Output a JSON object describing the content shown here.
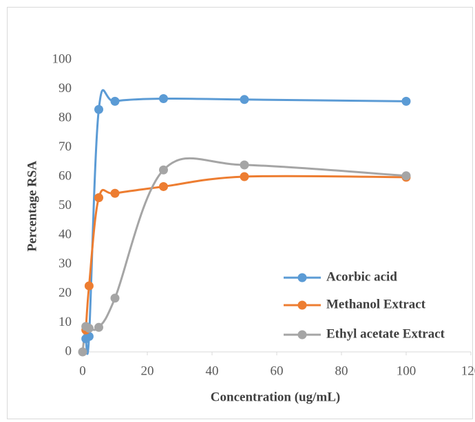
{
  "chart_data": {
    "type": "line",
    "xlabel": "Concentration (ug/mL)",
    "ylabel": "Percentage RSA",
    "x": [
      0,
      1,
      2,
      5,
      10,
      25,
      50,
      100
    ],
    "series": [
      {
        "name": "Acorbic acid",
        "color": "#5b9bd5",
        "values": [
          null,
          4.5,
          5.3,
          83,
          85.8,
          86.7,
          86.4,
          85.8
        ]
      },
      {
        "name": "Methanol Extract",
        "color": "#ed7d31",
        "values": [
          null,
          7.5,
          22.6,
          52.8,
          54.3,
          56.6,
          60.0,
          59.8
        ]
      },
      {
        "name": "Ethyl acetate Extract",
        "color": "#a5a5a5",
        "values": [
          0,
          8.7,
          8.1,
          8.4,
          18.4,
          62.3,
          64.0,
          60.3
        ]
      }
    ],
    "xlim": [
      0,
      120
    ],
    "xticks": [
      0,
      20,
      40,
      60,
      80,
      100,
      120
    ],
    "ylim": [
      0,
      100
    ],
    "yticks": [
      0,
      10,
      20,
      30,
      40,
      50,
      60,
      70,
      80,
      90,
      100
    ],
    "grid": false,
    "legend": "lower-right",
    "smooth": true
  }
}
